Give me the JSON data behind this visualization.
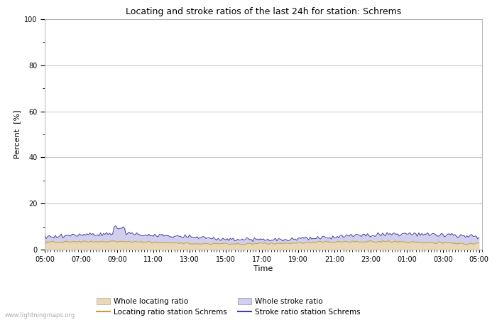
{
  "title": "Locating and stroke ratios of the last 24h for station: Schrems",
  "xlabel": "Time",
  "ylabel": "Percent  [%]",
  "xlim": [
    0,
    24
  ],
  "ylim": [
    0,
    100
  ],
  "yticks_major": [
    0,
    20,
    40,
    60,
    80,
    100
  ],
  "yticks_minor": [
    10,
    30,
    50,
    70,
    90
  ],
  "xtick_labels": [
    "05:00",
    "07:00",
    "09:00",
    "11:00",
    "13:00",
    "15:00",
    "17:00",
    "19:00",
    "21:00",
    "23:00",
    "01:00",
    "03:00",
    "05:00"
  ],
  "bg_color": "#ffffff",
  "plot_bg_color": "#ffffff",
  "grid_color": "#cccccc",
  "watermark": "www.lightningmaps.org",
  "whole_locating_fill_color": "#e8d8b8",
  "whole_stroke_fill_color": "#d0d0ee",
  "station_locating_line_color": "#c8a030",
  "station_stroke_line_color": "#4040a0",
  "legend_labels": [
    "Whole locating ratio",
    "Locating ratio station Schrems",
    "Whole stroke ratio",
    "Stroke ratio station Schrems"
  ]
}
